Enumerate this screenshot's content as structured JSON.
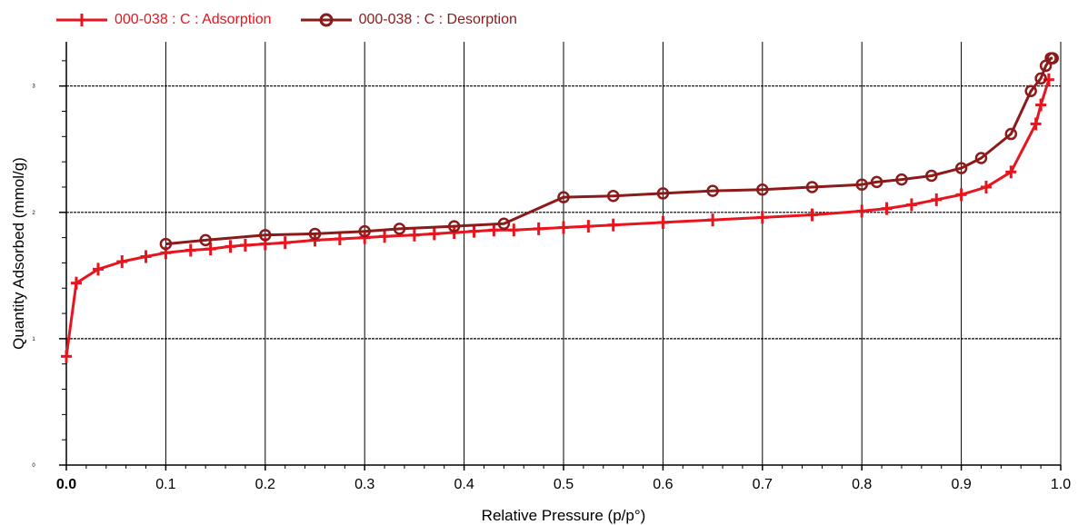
{
  "chart_data": {
    "type": "line",
    "title": "",
    "xlabel": "Relative Pressure (p/p°)",
    "ylabel": "Quantity Adsorbed (mmol/g)",
    "xlim": [
      0.0,
      1.0
    ],
    "ylim": [
      0,
      3.35
    ],
    "x_ticks": [
      "0.0",
      "0.1",
      "0.2",
      "0.3",
      "0.4",
      "0.5",
      "0.6",
      "0.7",
      "0.8",
      "0.9",
      "1.0"
    ],
    "y_ticks": [
      "0",
      "1",
      "2",
      "3"
    ],
    "grid": true,
    "legend_position": "top-left",
    "series": [
      {
        "name": "000-038 : C : Adsorption",
        "color": "#e8141e",
        "marker": "plus",
        "x": [
          0.0,
          0.01,
          0.032,
          0.056,
          0.08,
          0.1,
          0.125,
          0.145,
          0.165,
          0.18,
          0.2,
          0.22,
          0.25,
          0.275,
          0.3,
          0.32,
          0.35,
          0.37,
          0.39,
          0.41,
          0.43,
          0.45,
          0.475,
          0.5,
          0.525,
          0.55,
          0.6,
          0.65,
          0.7,
          0.75,
          0.8,
          0.825,
          0.85,
          0.875,
          0.9,
          0.925,
          0.95,
          0.975,
          0.98,
          0.988
        ],
        "y": [
          0.86,
          1.44,
          1.55,
          1.61,
          1.65,
          1.68,
          1.7,
          1.71,
          1.73,
          1.74,
          1.75,
          1.76,
          1.78,
          1.79,
          1.8,
          1.81,
          1.82,
          1.83,
          1.84,
          1.85,
          1.86,
          1.86,
          1.87,
          1.88,
          1.89,
          1.9,
          1.92,
          1.94,
          1.96,
          1.98,
          2.01,
          2.03,
          2.06,
          2.1,
          2.14,
          2.2,
          2.32,
          2.7,
          2.85,
          3.05
        ]
      },
      {
        "name": "000-038 : C : Desorption",
        "color": "#8b1a1a",
        "marker": "circle",
        "x": [
          0.992,
          0.99,
          0.985,
          0.98,
          0.97,
          0.95,
          0.92,
          0.9,
          0.87,
          0.84,
          0.815,
          0.8,
          0.75,
          0.7,
          0.65,
          0.6,
          0.55,
          0.5,
          0.44,
          0.39,
          0.335,
          0.3,
          0.25,
          0.2,
          0.14,
          0.1
        ],
        "y": [
          3.22,
          3.22,
          3.16,
          3.06,
          2.96,
          2.62,
          2.43,
          2.35,
          2.29,
          2.26,
          2.24,
          2.22,
          2.2,
          2.18,
          2.17,
          2.15,
          2.13,
          2.12,
          1.91,
          1.89,
          1.87,
          1.85,
          1.83,
          1.82,
          1.78,
          1.75
        ]
      }
    ]
  }
}
